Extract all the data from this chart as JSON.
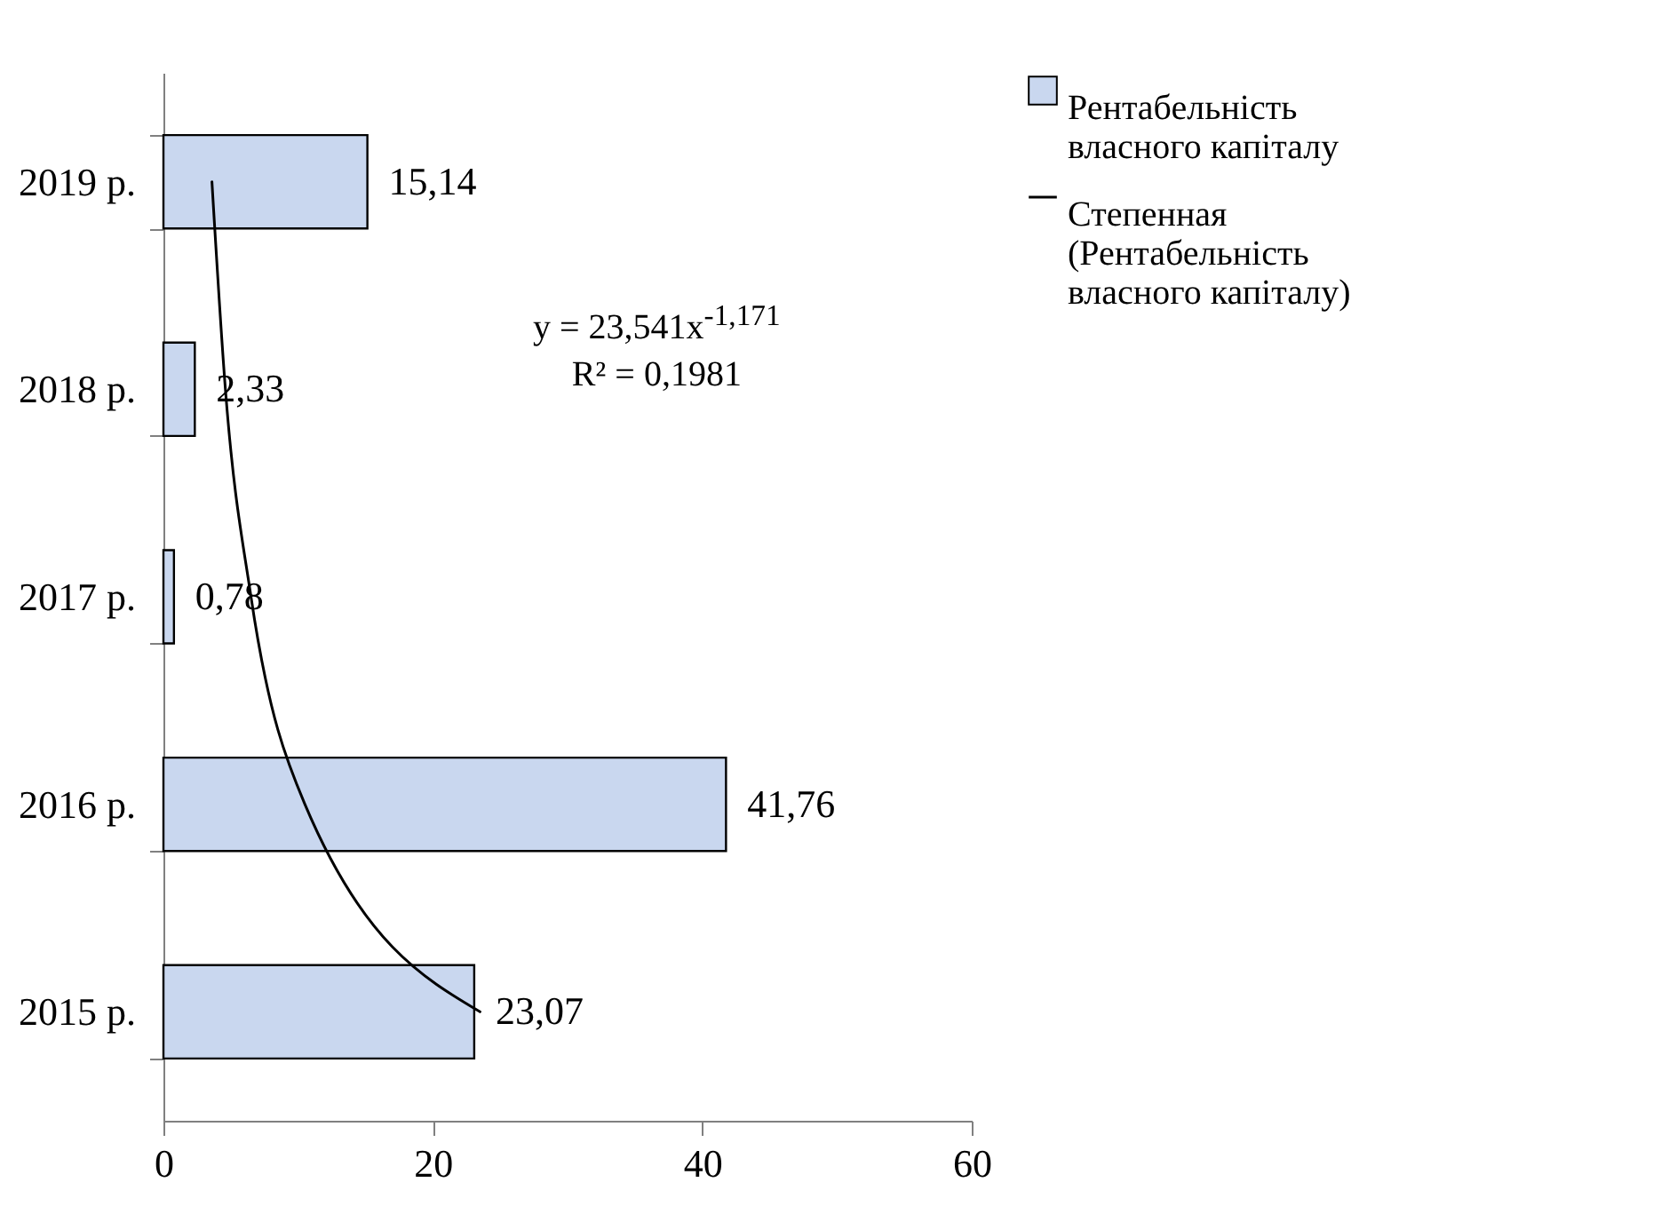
{
  "chart_data": {
    "type": "bar",
    "orientation": "horizontal",
    "categories": [
      "2019 р.",
      "2018 р.",
      "2017 р.",
      "2016 р.",
      "2015 р."
    ],
    "series": [
      {
        "name": "Рентабельність власного капіталу",
        "color": "#c9d7ef",
        "values": [
          15.14,
          2.33,
          0.78,
          41.76,
          23.07
        ],
        "value_labels": [
          "15,14",
          "2,33",
          "0,78",
          "41,76",
          "23,07"
        ]
      },
      {
        "name": "Степенная (Рентабельність власного капіталу)",
        "type": "line",
        "color": "#000000",
        "values": [
          3.6,
          4.6,
          6.5,
          10.5,
          23.5
        ]
      }
    ],
    "xlim": [
      0,
      60
    ],
    "xticks": [
      0,
      20,
      40,
      60
    ],
    "grid": false,
    "legend": "right",
    "annotations": [
      "y = 23,541x$^{-1,171}$",
      "R² = 0,1981"
    ]
  }
}
